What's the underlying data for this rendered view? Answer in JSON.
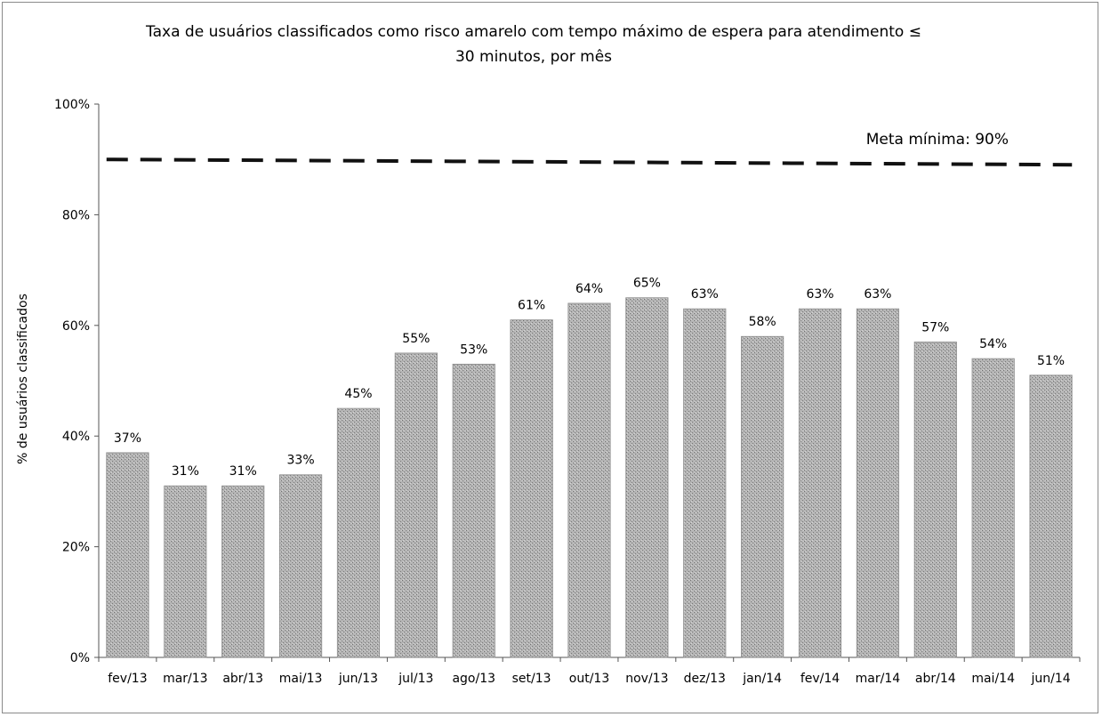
{
  "chart_data": {
    "type": "bar",
    "title": "Taxa de usuários classificados como risco amarelo com tempo máximo de espera para atendimento ≤ 30 minutos, por mês",
    "title_lines": [
      "Taxa de usuários classificados como risco amarelo com tempo máximo de espera para atendimento ≤",
      "30 minutos, por mês"
    ],
    "ylabel": "% de usuários classificados",
    "xlabel": "",
    "ylim": [
      0,
      100
    ],
    "yticks": [
      "0%",
      "20%",
      "40%",
      "60%",
      "80%",
      "100%"
    ],
    "ytick_values": [
      0,
      20,
      40,
      60,
      80,
      100
    ],
    "categories": [
      "fev/13",
      "mar/13",
      "abr/13",
      "mai/13",
      "jun/13",
      "jul/13",
      "ago/13",
      "set/13",
      "out/13",
      "nov/13",
      "dez/13",
      "jan/14",
      "fev/14",
      "mar/14",
      "abr/14",
      "mai/14",
      "jun/14"
    ],
    "values": [
      37,
      31,
      31,
      33,
      45,
      55,
      53,
      61,
      64,
      65,
      63,
      58,
      63,
      63,
      57,
      54,
      51
    ],
    "data_labels": [
      "37%",
      "31%",
      "31%",
      "33%",
      "45%",
      "55%",
      "53%",
      "61%",
      "64%",
      "65%",
      "63%",
      "58%",
      "63%",
      "63%",
      "57%",
      "54%",
      "51%"
    ],
    "target": {
      "value": 90,
      "label": "Meta mínima: 90%",
      "style": "dashed"
    },
    "grid": false,
    "bar_color": "#a9a9a9",
    "bar_pattern": "stippled"
  }
}
